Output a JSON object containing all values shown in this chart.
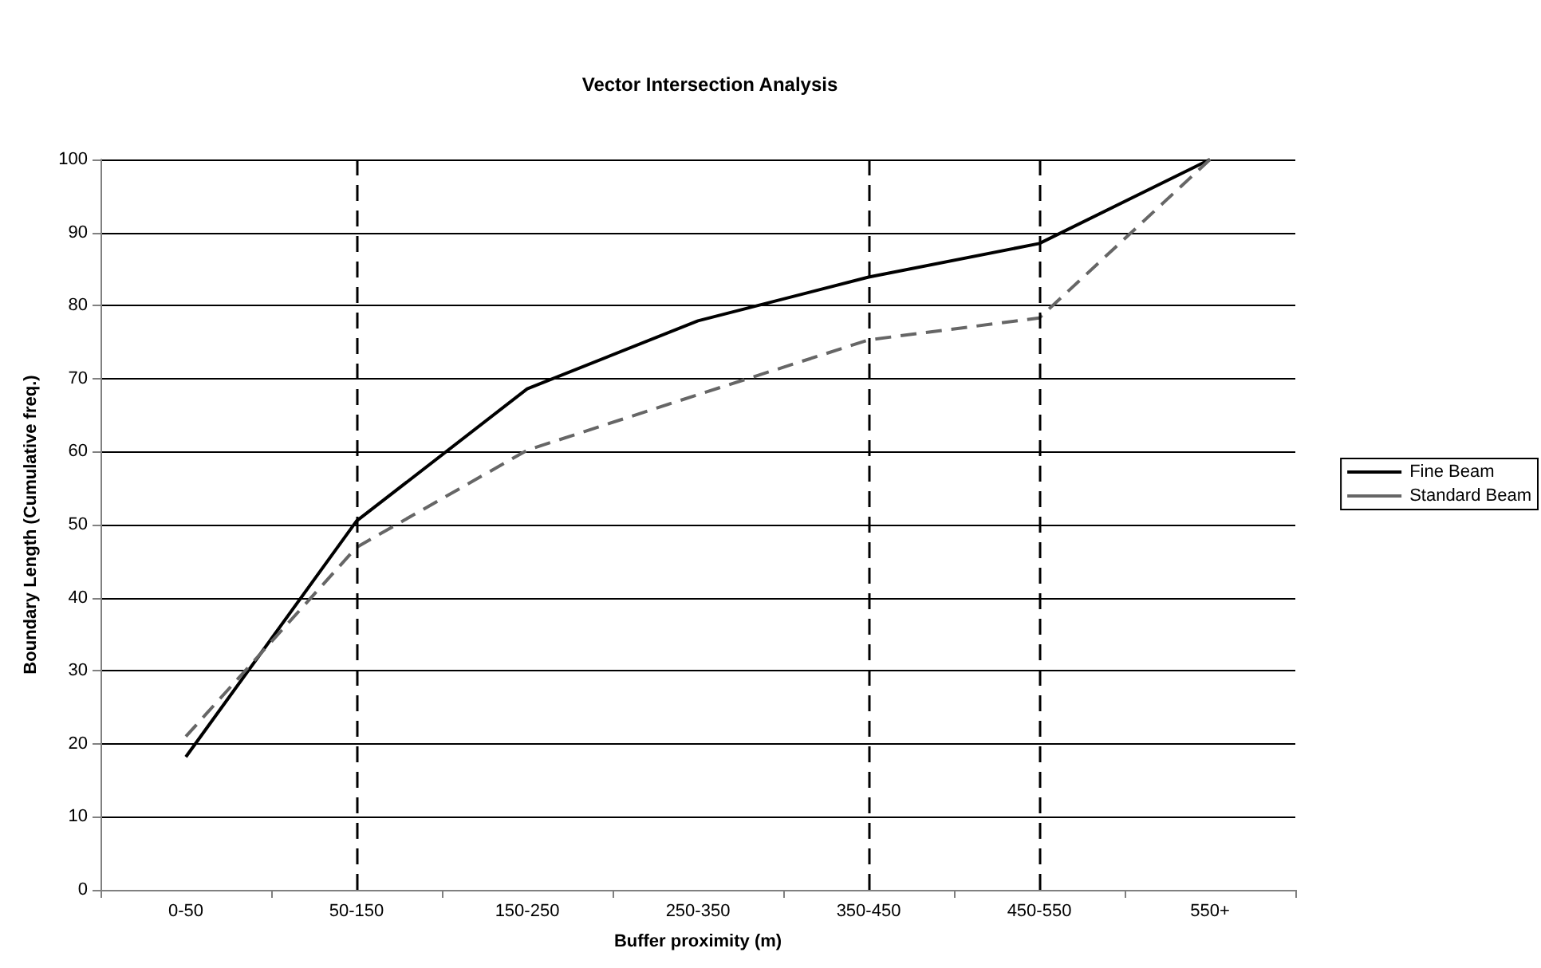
{
  "chart_data": {
    "type": "line",
    "title": "Vector Intersection Analysis",
    "xlabel": "Buffer proximity (m)",
    "ylabel": "Boundary Length (Cumulative freq.)",
    "categories": [
      "0-50",
      "50-150",
      "150-250",
      "250-350",
      "350-450",
      "450-550",
      "550+"
    ],
    "series": [
      {
        "name": "Fine Beam",
        "color": "#000000",
        "line_style": "solid",
        "values": [
          18.2,
          50.5,
          68.6,
          77.9,
          83.9,
          88.5,
          100
        ]
      },
      {
        "name": "Standard Beam",
        "color": "#666666",
        "line_style": "dashed",
        "values": [
          21.0,
          46.9,
          60.2,
          67.8,
          75.3,
          78.3,
          100
        ]
      }
    ],
    "ylim": [
      0,
      100
    ],
    "yticks": [
      0,
      10,
      20,
      30,
      40,
      50,
      60,
      70,
      80,
      90,
      100
    ],
    "grid": "y",
    "legend": "right",
    "marker": "none",
    "ref_lines": [
      {
        "axis": "x",
        "value": "50-150",
        "color": "#000000",
        "line_style": "dashed"
      },
      {
        "axis": "x",
        "value": "350-450",
        "color": "#000000",
        "line_style": "dashed"
      },
      {
        "axis": "x",
        "value": "450-550",
        "color": "#000000",
        "line_style": "dashed"
      }
    ]
  }
}
